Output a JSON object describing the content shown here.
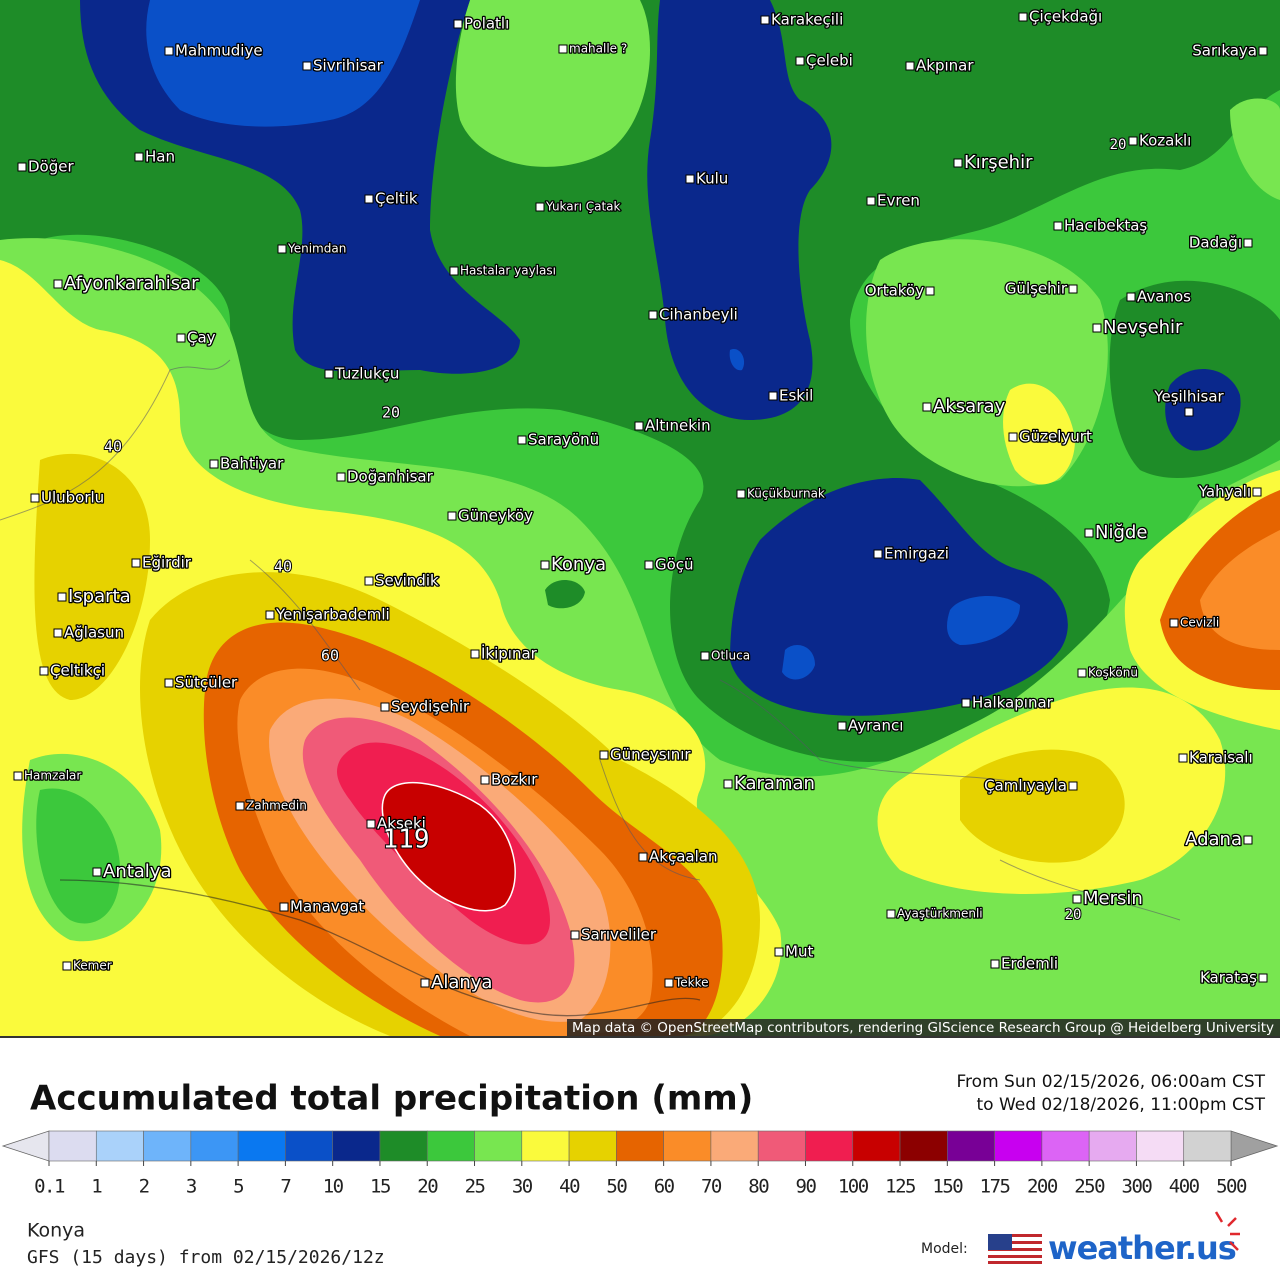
{
  "map": {
    "places": [
      "Polatlı",
      "Karakeçili",
      "Çiçekdağı",
      "Mahmudiye",
      "mahalle ?",
      "Sarıkaya",
      "Sivrihisar",
      "Çelebi",
      "Akpınar",
      "Kozaklı",
      "Döğer",
      "Han",
      "Kulu",
      "Kırşehir",
      "Çeltik",
      "Yukarı Çatak",
      "Evren",
      "Hacıbektaş",
      "Dadağı",
      "Yenimdan",
      "Hastalar yaylası",
      "Afyonkarahisar",
      "Ortaköy",
      "Gülşehir",
      "Avanos",
      "Nevşehir",
      "Cihanbeyli",
      "Çay",
      "Tuzlukçu",
      "Eskil",
      "Yeşilhisar",
      "Aksaray",
      "Güzelyurt",
      "Altınekin",
      "Sarayönü",
      "Bahtiyar",
      "Doğanhisar",
      "Uluborlu",
      "Yahyalı",
      "Küçükburnak",
      "Güneyköy",
      "Niğde",
      "Emirgazi",
      "Eğirdir",
      "Konya",
      "Göçü",
      "Sevindik",
      "Isparta",
      "Yenişarbademli",
      "Cevizli",
      "Ağlasun",
      "İkipınar",
      "Otluca",
      "Çeltikçi",
      "Koşkönü",
      "Sütçüler",
      "Halkapınar",
      "Seydişehir",
      "Ayrancı",
      "Güneysınır",
      "Karaisalı",
      "Hamzalar",
      "Bozkır",
      "Karaman",
      "Çamlıyayla",
      "Zahmedin",
      "Akseki",
      "Adana",
      "Akçaalan",
      "Antalya",
      "Mersin",
      "Manavgat",
      "Ayaştürkmenli",
      "Sarıveliler",
      "Mut",
      "Erdemli",
      "Kemer",
      "Karataş",
      "Alanya",
      "Tekke"
    ],
    "contour_labels": [
      "20",
      "40",
      "40",
      "60",
      "119",
      "20",
      "20"
    ],
    "attribution": "Map data © OpenStreetMap contributors, rendering GIScience Research Group @ Heidelberg University"
  },
  "header": {
    "title": "Accumulated total precipitation (mm)",
    "from": "From Sun 02/15/2026, 06:00am CST",
    "to": "to Wed 02/18/2026, 11:00pm CST"
  },
  "legend": {
    "ticks": [
      0.1,
      1,
      2,
      3,
      5,
      7,
      10,
      15,
      20,
      25,
      30,
      40,
      50,
      60,
      70,
      80,
      90,
      100,
      125,
      150,
      175,
      200,
      250,
      300,
      400,
      500
    ],
    "colors": [
      "#dcdcf0",
      "#aad2fa",
      "#6eb4fa",
      "#3c96f5",
      "#0a78f0",
      "#0a50c8",
      "#0a288c",
      "#1e8c28",
      "#3cc83c",
      "#78e650",
      "#fafa3c",
      "#e6d200",
      "#e66400",
      "#fa8c28",
      "#faaa78",
      "#f05a78",
      "#f01e50",
      "#c80000",
      "#8c0000",
      "#780096",
      "#c800f0",
      "#dc64f5",
      "#e6aaf0",
      "#f5dcf5",
      "#d2d2d2"
    ],
    "under_color": "#e6e6ee",
    "over_color": "#a0a0a0"
  },
  "footer": {
    "location": "Konya",
    "run": "GFS (15 days) from 02/15/2026/12z",
    "model_label": "Model:",
    "brand": "weather.us"
  }
}
